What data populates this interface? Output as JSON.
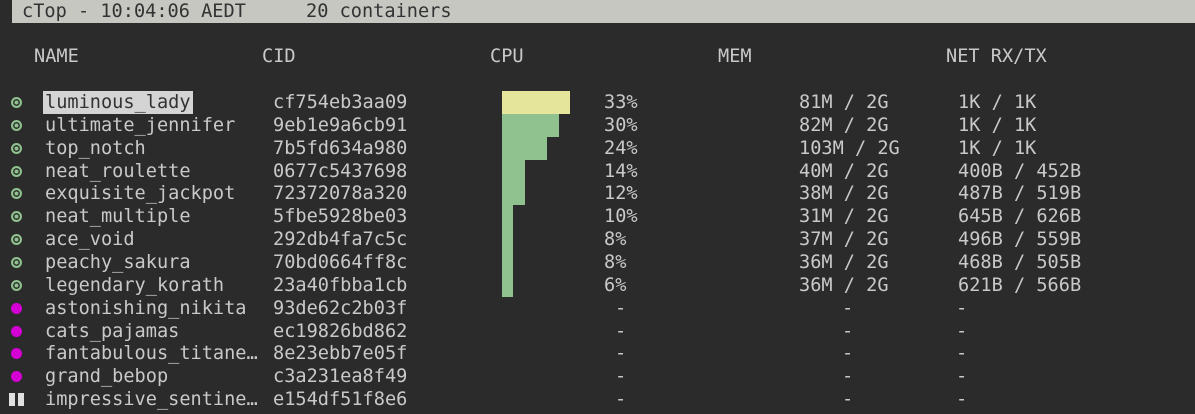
{
  "title": {
    "app": "cTop - 10:04:06 AEDT",
    "count": "20 containers"
  },
  "columns": [
    "NAME",
    "CID",
    "CPU",
    "MEM",
    "NET RX/TX"
  ],
  "colors": {
    "running": "#8fc28f",
    "stopped": "#d400d4",
    "cpu_bar": "#8fc28f",
    "cpu_bar_selected": "#e6e59c"
  },
  "containers": [
    {
      "status": "running",
      "name": "luminous_lady",
      "cid": "cf754eb3aa09",
      "cpu": "33%",
      "cpu_pct": 33,
      "mem": "81M / 2G",
      "net": "1K / 1K",
      "selected": true
    },
    {
      "status": "running",
      "name": "ultimate_jennifer",
      "cid": "9eb1e9a6cb91",
      "cpu": "30%",
      "cpu_pct": 30,
      "mem": "82M / 2G",
      "net": "1K / 1K"
    },
    {
      "status": "running",
      "name": "top_notch",
      "cid": "7b5fd634a980",
      "cpu": "24%",
      "cpu_pct": 24,
      "mem": "103M / 2G",
      "net": "1K / 1K"
    },
    {
      "status": "running",
      "name": "neat_roulette",
      "cid": "0677c5437698",
      "cpu": "14%",
      "cpu_pct": 14,
      "mem": "40M / 2G",
      "net": "400B / 452B"
    },
    {
      "status": "running",
      "name": "exquisite_jackpot",
      "cid": "72372078a320",
      "cpu": "12%",
      "cpu_pct": 12,
      "mem": "38M / 2G",
      "net": "487B / 519B"
    },
    {
      "status": "running",
      "name": "neat_multiple",
      "cid": "5fbe5928be03",
      "cpu": "10%",
      "cpu_pct": 10,
      "mem": "31M / 2G",
      "net": "645B / 626B"
    },
    {
      "status": "running",
      "name": "ace_void",
      "cid": "292db4fa7c5c",
      "cpu": "8%",
      "cpu_pct": 8,
      "mem": "37M / 2G",
      "net": "496B / 559B"
    },
    {
      "status": "running",
      "name": "peachy_sakura",
      "cid": "70bd0664ff8c",
      "cpu": "8%",
      "cpu_pct": 8,
      "mem": "36M / 2G",
      "net": "468B / 505B"
    },
    {
      "status": "running",
      "name": "legendary_korath",
      "cid": "23a40fbba1cb",
      "cpu": "6%",
      "cpu_pct": 6,
      "mem": "36M / 2G",
      "net": "621B / 566B"
    },
    {
      "status": "stopped",
      "name": "astonishing_nikita",
      "cid": "93de62c2b03f",
      "cpu": "-",
      "mem": "-",
      "net": "-"
    },
    {
      "status": "stopped",
      "name": "cats_pajamas",
      "cid": "ec19826bd862",
      "cpu": "-",
      "mem": "-",
      "net": "-"
    },
    {
      "status": "stopped",
      "name": "fantabulous_titane…",
      "cid": "8e23ebb7e05f",
      "cpu": "-",
      "mem": "-",
      "net": "-"
    },
    {
      "status": "stopped",
      "name": "grand_bebop",
      "cid": "c3a231ea8f49",
      "cpu": "-",
      "mem": "-",
      "net": "-"
    },
    {
      "status": "paused",
      "name": "impressive_sentine…",
      "cid": "e154df51f8e6",
      "cpu": "-",
      "mem": "-",
      "net": "-"
    }
  ]
}
